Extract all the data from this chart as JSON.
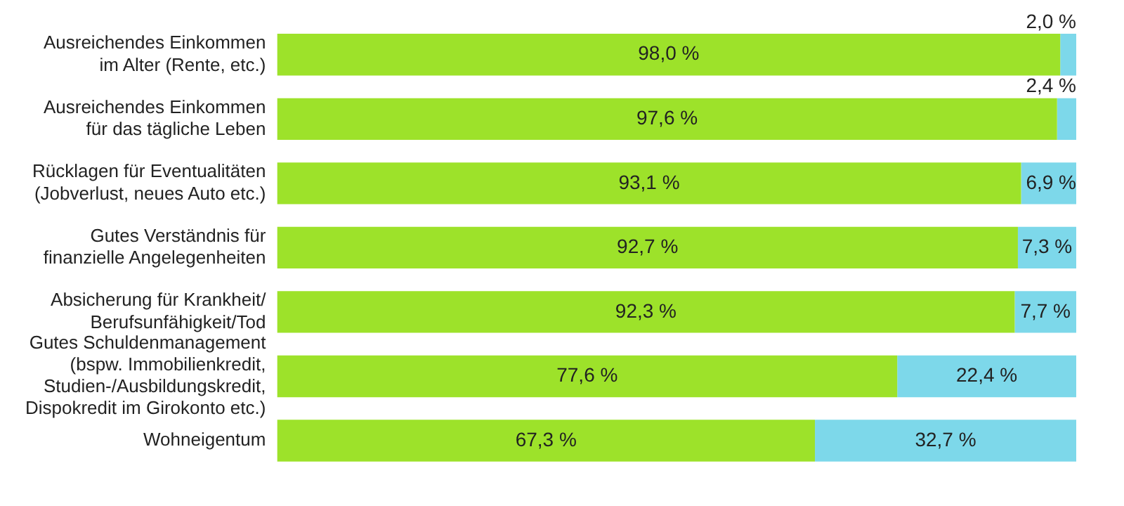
{
  "chart_data": {
    "type": "bar",
    "orientation": "horizontal",
    "stacked": true,
    "xlim": [
      0,
      100
    ],
    "tick_labels": "y",
    "categories": [
      "Ausreichendes Einkommen\nim Alter (Rente, etc.)",
      "Ausreichendes Einkommen\nfür das tägliche Leben",
      "Rücklagen für Eventualitäten\n(Jobverlust, neues Auto etc.)",
      "Gutes Verständnis für\nfinanzielle Angelegenheiten",
      "Absicherung für Krankheit/\nBerufsunfähigkeit/Tod",
      "Gutes Schuldenmanagement\n(bspw. Immobilienkredit,\nStudien-/Ausbildungskredit,\nDispokredit im Girokonto etc.)",
      "Wohneigentum"
    ],
    "series": [
      {
        "color": "#9de22a",
        "values": [
          98.0,
          97.6,
          93.1,
          92.7,
          92.3,
          77.6,
          67.3
        ],
        "value_labels": [
          "98,0 %",
          "97,6 %",
          "93,1 %",
          "92,7 %",
          "92,3 %",
          "77,6 %",
          "67,3 %"
        ]
      },
      {
        "color": "#7dd8ea",
        "values": [
          2.0,
          2.4,
          6.9,
          7.3,
          7.7,
          22.4,
          32.7
        ],
        "value_labels": [
          "2,0 %",
          "2,4 %",
          "6,9 %",
          "7,3 %",
          "7,7 %",
          "22,4 %",
          "32,7 %"
        ]
      }
    ]
  }
}
